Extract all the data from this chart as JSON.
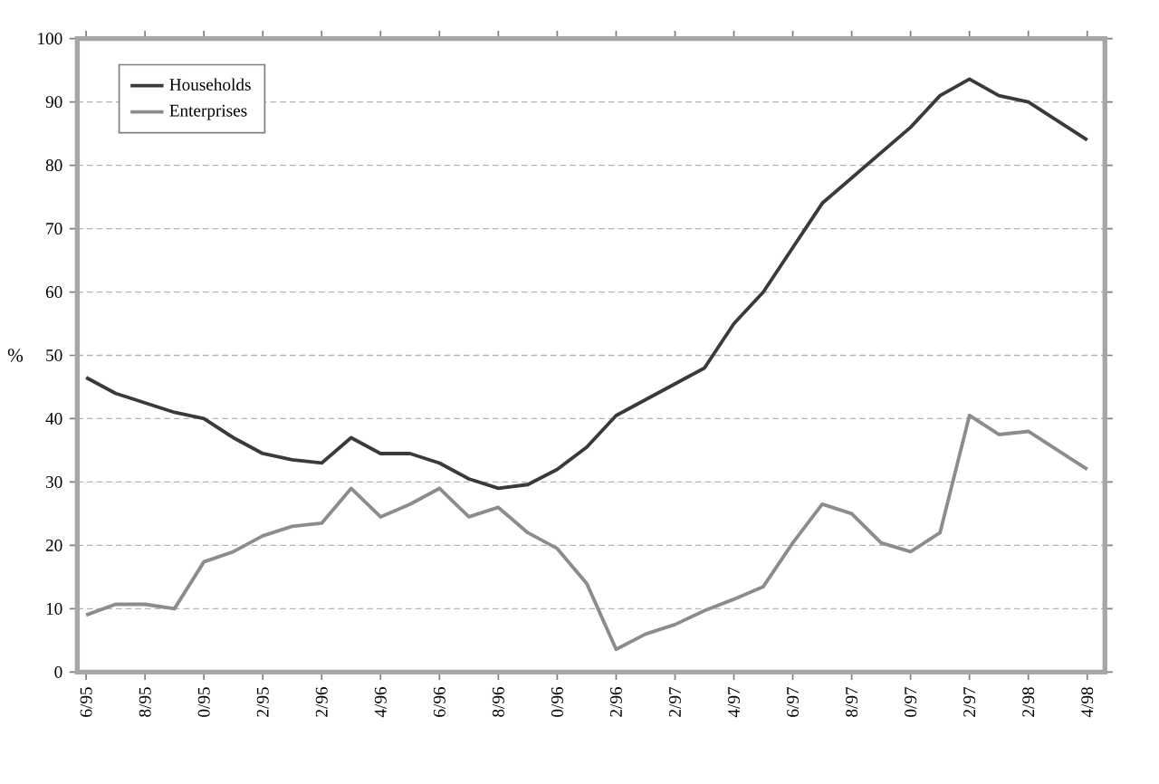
{
  "chart_data": {
    "type": "line",
    "ylabel": "%",
    "ylim": [
      0,
      100
    ],
    "yticks": [
      0,
      10,
      20,
      30,
      40,
      50,
      60,
      70,
      80,
      90,
      100
    ],
    "categories": [
      "6/95",
      null,
      "8/95",
      null,
      "0/95",
      null,
      "2/95",
      null,
      "2/96",
      null,
      "4/96",
      null,
      "6/96",
      null,
      "8/96",
      null,
      "0/96",
      null,
      "2/96",
      null,
      "2/97",
      null,
      "4/97",
      null,
      "6/97",
      null,
      "8/97",
      null,
      "0/97",
      null,
      "2/97",
      null,
      "2/98",
      null,
      "4/98"
    ],
    "grid": "y",
    "legend": "top left",
    "line_style": "solid",
    "marker": "none",
    "series": [
      {
        "name": "Households",
        "color": "#3a3a3a",
        "values": [
          46.5,
          44,
          42.5,
          41,
          40,
          37,
          34.5,
          33.5,
          33,
          37,
          34.5,
          34.5,
          33,
          30.5,
          29,
          29.6,
          32,
          35.5,
          40.5,
          43,
          45.5,
          48,
          55,
          60,
          67,
          74,
          78,
          82,
          86,
          91,
          93.6,
          91,
          90,
          87,
          84
        ]
      },
      {
        "name": "Enterprises",
        "color": "#8c8c8c",
        "values": [
          9,
          10.7,
          10.7,
          10,
          17.4,
          19,
          21.5,
          23,
          23.5,
          29,
          24.5,
          26.5,
          29,
          24.5,
          26,
          22,
          19.5,
          14,
          3.6,
          6,
          7.5,
          9.7,
          11.5,
          13.5,
          20.4,
          26.5,
          25,
          20.4,
          19,
          22,
          40.5,
          37.5,
          38,
          35,
          32
        ]
      }
    ]
  }
}
